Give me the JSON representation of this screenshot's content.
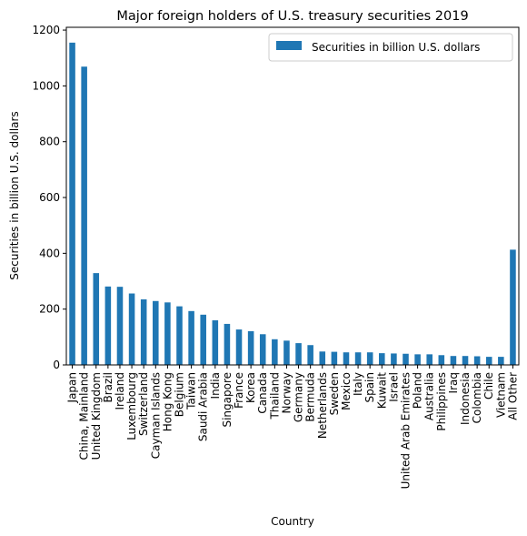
{
  "chart_data": {
    "type": "bar",
    "title": "Major foreign holders of U.S. treasury securities 2019",
    "xlabel": "Country",
    "ylabel": "Securities in billion U.S. dollars",
    "ylim": [
      0,
      1210
    ],
    "yticks": [
      0,
      200,
      400,
      600,
      800,
      1000,
      1200
    ],
    "grid": false,
    "legend_position": "top-right",
    "series": [
      {
        "name": "Securities in billion U.S. dollars",
        "color": "#1f77b4",
        "values": [
          1155,
          1069,
          329,
          281,
          280,
          256,
          235,
          229,
          224,
          210,
          193,
          180,
          160,
          147,
          127,
          121,
          110,
          92,
          87,
          78,
          71,
          48,
          47,
          45,
          45,
          45,
          42,
          41,
          40,
          38,
          38,
          35,
          32,
          32,
          31,
          29,
          29,
          413
        ]
      }
    ],
    "categories": [
      "Japan",
      "China, Mainland",
      "United Kingdom",
      "Brazil",
      "Ireland",
      "Luxembourg",
      "Switzerland",
      "Cayman Islands",
      "Hong Kong",
      "Belgium",
      "Taiwan",
      "Saudi Arabia",
      "India",
      "Singapore",
      "France",
      "Korea",
      "Canada",
      "Thailand",
      "Norway",
      "Germany",
      "Bermuda",
      "Netherlands",
      "Sweden",
      "Mexico",
      "Italy",
      "Spain",
      "Kuwait",
      "Israel",
      "United Arab Emirates",
      "Poland",
      "Australia",
      "Philippines",
      "Iraq",
      "Indonesia",
      "Colombia",
      "Chile",
      "Vietnam",
      "All Other"
    ]
  }
}
